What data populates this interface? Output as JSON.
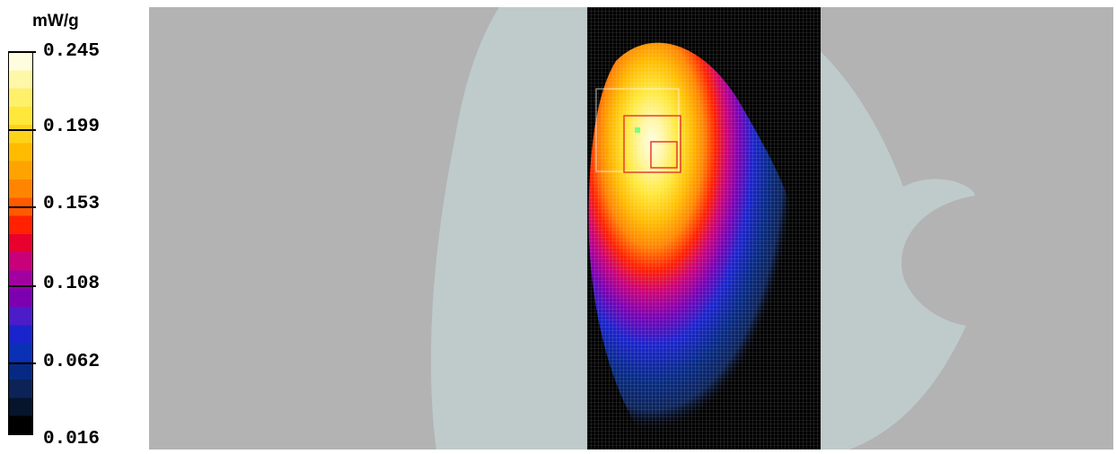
{
  "legend": {
    "unit": "mW/g",
    "ticks": [
      "0.245",
      "0.199",
      "0.153",
      "0.108",
      "0.062",
      "0.016"
    ],
    "colors": [
      "#fffde0",
      "#fff7a8",
      "#fff06a",
      "#ffe83a",
      "#ffd21a",
      "#ffbb00",
      "#ffa300",
      "#ff8500",
      "#ff5a00",
      "#ff2100",
      "#e8002e",
      "#c8007a",
      "#a200a0",
      "#7c00b2",
      "#4b1cc8",
      "#1a24cc",
      "#0a30b6",
      "#062a84",
      "#0c2358",
      "#06142c",
      "#000000"
    ]
  },
  "colors": {
    "background": "#b3b3b3",
    "phantom": "#bfcbcb",
    "grid_bg": "#000000",
    "marker": "#e83a2e",
    "green_dot": "#7cff7c"
  }
}
